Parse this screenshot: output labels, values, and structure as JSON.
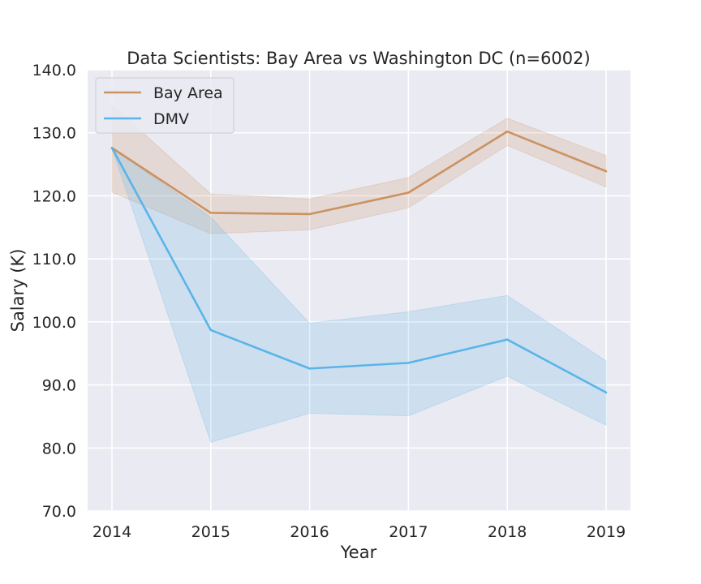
{
  "chart_data": {
    "type": "line",
    "title": "Data Scientists: Bay Area vs Washington DC (n=6002)",
    "xlabel": "Year",
    "ylabel": "Salary (K)",
    "x": [
      "2014",
      "2015",
      "2016",
      "2017",
      "2018",
      "2019"
    ],
    "yticks": [
      "70.0",
      "80.0",
      "90.0",
      "100.0",
      "110.0",
      "120.0",
      "130.0",
      "140.0"
    ],
    "ylim": [
      70,
      140
    ],
    "grid": true,
    "legend_position": "top-left",
    "series": [
      {
        "name": "Bay Area",
        "color": "#CB9262",
        "values": [
          127.6,
          117.3,
          117.1,
          120.5,
          130.2,
          123.9
        ],
        "ci_lower": [
          120.6,
          114.0,
          114.6,
          118.1,
          128.0,
          121.4
        ],
        "ci_upper": [
          134.4,
          120.3,
          119.5,
          122.9,
          132.3,
          126.4
        ]
      },
      {
        "name": "DMV",
        "color": "#5AB4E8",
        "values": [
          127.6,
          98.7,
          92.6,
          93.5,
          97.2,
          88.8
        ],
        "ci_lower": [
          127.6,
          80.9,
          85.5,
          85.1,
          91.4,
          83.6
        ],
        "ci_upper": [
          127.6,
          116.6,
          99.8,
          101.6,
          104.2,
          93.8
        ]
      }
    ]
  }
}
